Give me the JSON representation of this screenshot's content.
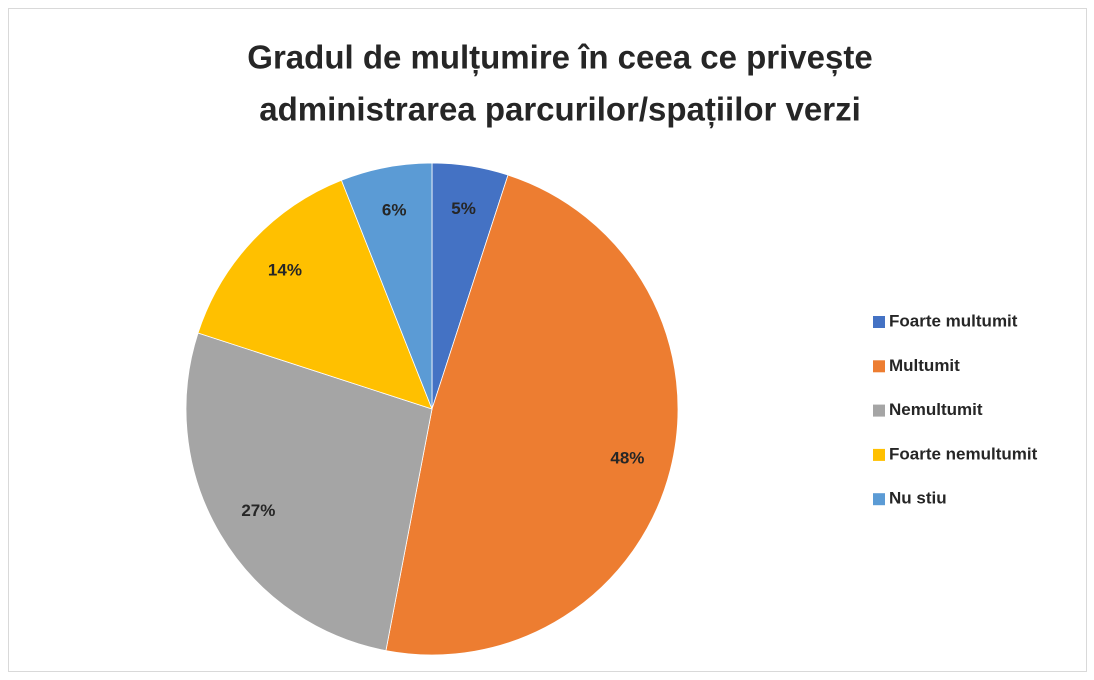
{
  "chart_data": {
    "type": "pie",
    "title": [
      "Gradul de mulțumire în ceea ce privește",
      "administrarea parcurilor/spațiilor verzi"
    ],
    "categories": [
      "Foarte multumit",
      "Multumit",
      "Nemultumit",
      "Foarte nemultumit",
      "Nu stiu"
    ],
    "values": [
      5,
      48,
      27,
      14,
      6
    ],
    "value_labels": [
      "5%",
      "48%",
      "27%",
      "14%",
      "6%"
    ],
    "colors": [
      "#4472c4",
      "#ed7d31",
      "#a5a5a5",
      "#ffc000",
      "#5b9bd5"
    ],
    "legend": "right"
  }
}
